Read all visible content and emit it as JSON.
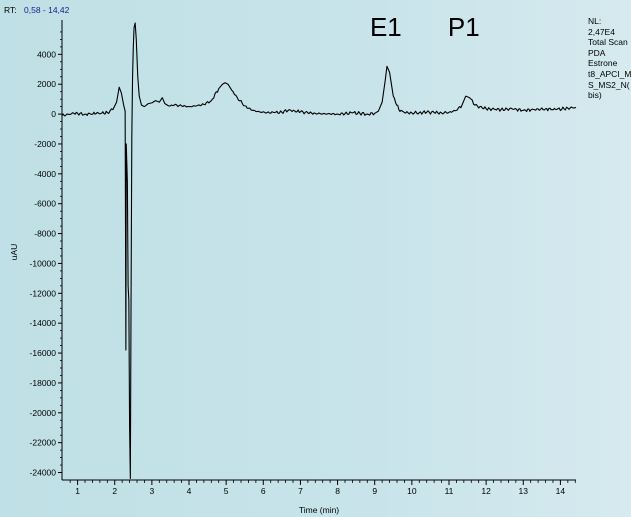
{
  "header": {
    "rt_prefix": "RT:",
    "rt_range": "0,58 - 14,42"
  },
  "side_panel": {
    "lines": [
      "NL:",
      "2,47E4",
      "Total Scan",
      " PDA",
      "Estrone",
      "t8_APCI_M",
      "S_MS2_N(",
      "bis)"
    ]
  },
  "colors": {
    "trace": "#000000",
    "rt_value": "#1a1a8c",
    "background": "#c8e4ea"
  },
  "chart_data": {
    "type": "line",
    "title": "",
    "xlabel": "Time (min)",
    "ylabel": "uAU",
    "xlim": [
      0.58,
      14.42
    ],
    "ylim": [
      -24500,
      6300
    ],
    "x_ticks": [
      1,
      2,
      3,
      4,
      5,
      6,
      7,
      8,
      9,
      10,
      11,
      12,
      13,
      14
    ],
    "x_tick_labels": [
      "1",
      "2",
      "3",
      "4",
      "5",
      "6",
      "7",
      "8",
      "9",
      "10",
      "11",
      "12",
      "13",
      "14"
    ],
    "y_ticks": [
      4000,
      2000,
      0,
      -2000,
      -4000,
      -6000,
      -8000,
      -10000,
      -12000,
      -14000,
      -16000,
      -18000,
      -20000,
      -22000,
      -24000
    ],
    "y_tick_labels": [
      "4000",
      "2000",
      "0",
      "-2000",
      "-4000",
      "-6000",
      "-8000",
      "-10000",
      "-12000",
      "-14000",
      "-16000",
      "-18000",
      "-20000",
      "-22000",
      "-24000"
    ],
    "annotations": [
      {
        "text": "E1",
        "x": 9.3
      },
      {
        "text": "P1",
        "x": 11.4
      }
    ],
    "series": [
      {
        "x": [
          0.58,
          0.9,
          1.2,
          1.5,
          1.8,
          1.95,
          2.05,
          2.12,
          2.18,
          2.24,
          2.28,
          2.3,
          2.31,
          2.34,
          2.36,
          2.38,
          2.4,
          2.42,
          2.44,
          2.46,
          2.48,
          2.5,
          2.52,
          2.55,
          2.58,
          2.62,
          2.66,
          2.72,
          2.8,
          2.9,
          3.0,
          3.1,
          3.2,
          3.28,
          3.35,
          3.45,
          3.6,
          3.8,
          4.0,
          4.2,
          4.4,
          4.6,
          4.8,
          4.9,
          4.97,
          5.05,
          5.15,
          5.3,
          5.5,
          5.7,
          5.9,
          6.1,
          6.3,
          6.5,
          6.7,
          6.85,
          7.0,
          7.2,
          7.4,
          7.6,
          7.8,
          8.0,
          8.2,
          8.4,
          8.6,
          8.8,
          9.0,
          9.1,
          9.2,
          9.28,
          9.33,
          9.4,
          9.5,
          9.65,
          9.8,
          10.0,
          10.2,
          10.4,
          10.6,
          10.8,
          11.0,
          11.2,
          11.35,
          11.45,
          11.55,
          11.7,
          11.9,
          12.1,
          12.4,
          12.7,
          13.0,
          13.3,
          13.6,
          13.9,
          14.2,
          14.42
        ],
        "y": [
          -100,
          50,
          0,
          30,
          100,
          300,
          800,
          1800,
          1400,
          600,
          200,
          -15800,
          -2000,
          -4500,
          -11500,
          -12500,
          -21000,
          -24400,
          -12000,
          -1500,
          2500,
          4500,
          5800,
          6100,
          5000,
          2500,
          1200,
          600,
          500,
          700,
          750,
          900,
          800,
          1100,
          700,
          550,
          600,
          550,
          500,
          550,
          650,
          900,
          1700,
          2000,
          2100,
          2000,
          1600,
          1100,
          550,
          250,
          150,
          100,
          100,
          120,
          300,
          200,
          150,
          80,
          50,
          20,
          10,
          0,
          30,
          80,
          50,
          0,
          50,
          200,
          800,
          2200,
          3200,
          2800,
          1200,
          300,
          100,
          80,
          100,
          120,
          100,
          80,
          120,
          250,
          600,
          1200,
          1100,
          600,
          400,
          350,
          300,
          350,
          250,
          300,
          350,
          300,
          400,
          450
        ]
      }
    ],
    "grid": false,
    "legend": "none"
  }
}
